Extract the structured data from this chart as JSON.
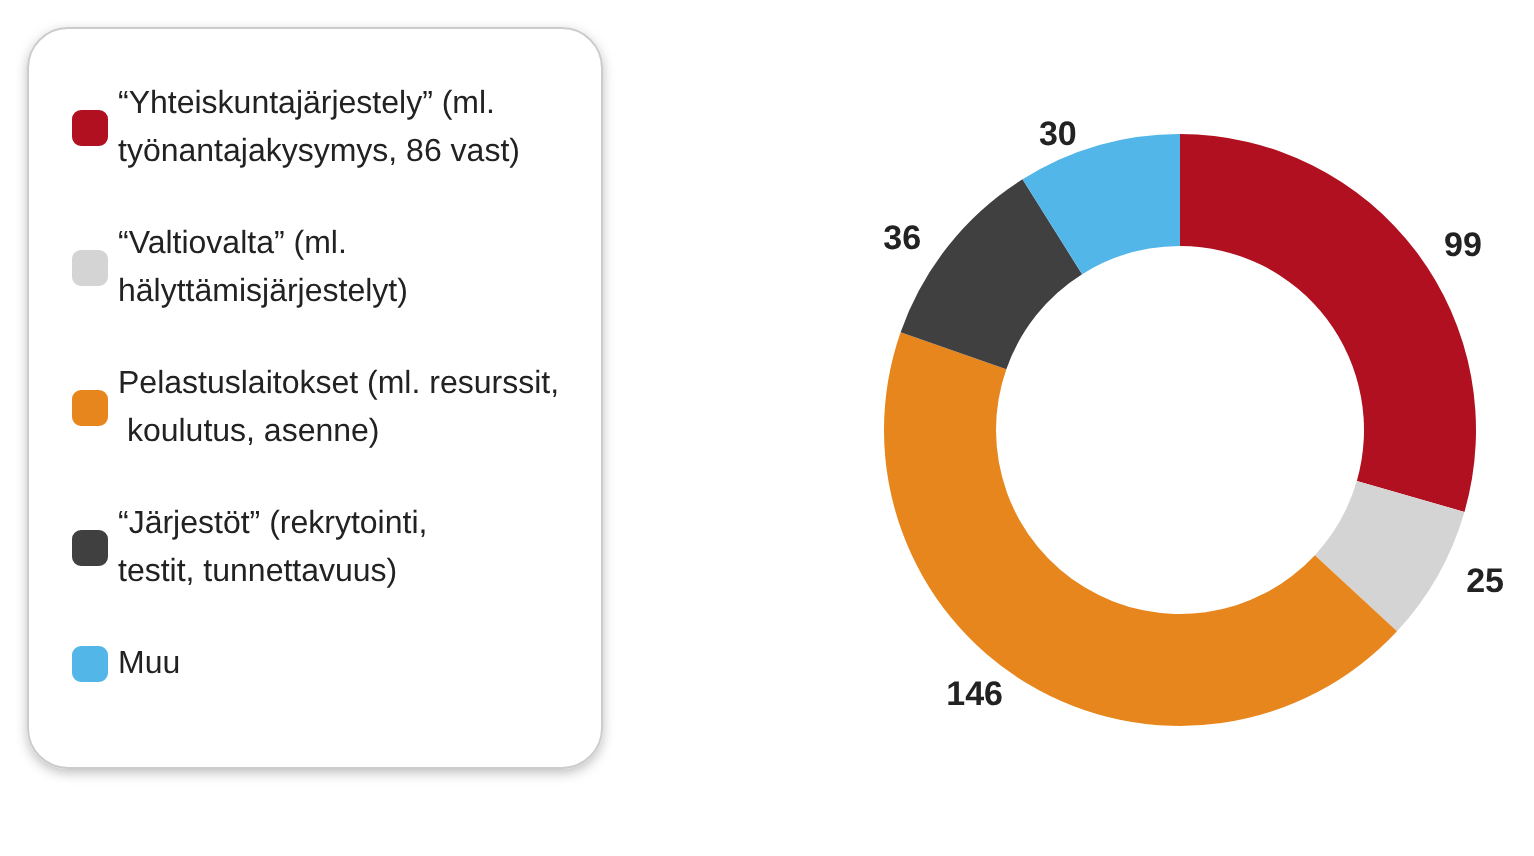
{
  "chart_data": {
    "type": "donut",
    "categories": [
      "“Yhteiskuntajärjestely” (ml. työnantajakysymys, 86 vast)",
      "“Valtiovalta” (ml. hälyttämisjärjestelyt)",
      "Pelastuslaitokset (ml. resurssit, koulutus, asenne)",
      "“Järjestöt” (rekrytointi, testit, tunnettavuus)",
      "Muu"
    ],
    "values": [
      99,
      25,
      146,
      36,
      30
    ],
    "colors": [
      "#b01020",
      "#d4d4d4",
      "#e8861e",
      "#404040",
      "#52b6e8"
    ],
    "data_labels": true,
    "legend": "left"
  }
}
